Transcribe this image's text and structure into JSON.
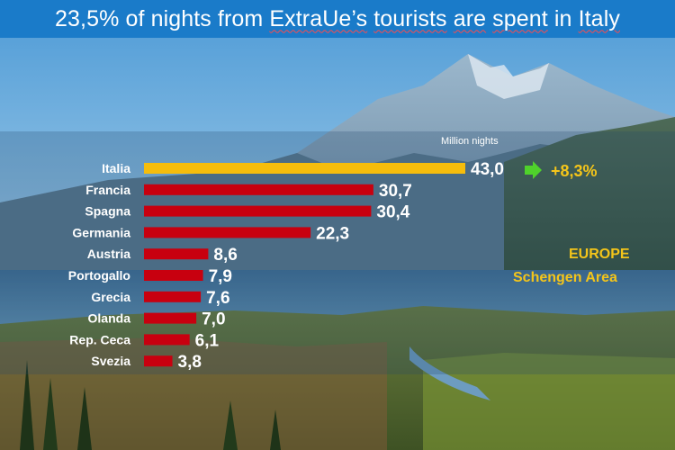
{
  "title": {
    "parts": [
      {
        "text": "23,5% of nights from ",
        "underline": false
      },
      {
        "text": "ExtraUe’s",
        "underline": true
      },
      {
        "text": " ",
        "underline": false
      },
      {
        "text": "tourists",
        "underline": true
      },
      {
        "text": " ",
        "underline": false
      },
      {
        "text": "are",
        "underline": true
      },
      {
        "text": " ",
        "underline": false
      },
      {
        "text": "spent",
        "underline": true
      },
      {
        "text": " in ",
        "underline": false
      },
      {
        "text": "Italy",
        "underline": true
      }
    ]
  },
  "colors": {
    "title_bg": "#1a7bc9",
    "highlight_bar": "#f6bd0c",
    "bar": "#c8000f",
    "accent_text": "#f4c51a",
    "arrow": "#4fd22b"
  },
  "chart_data": {
    "type": "bar",
    "orientation": "horizontal",
    "unit_label": "Million nights",
    "categories": [
      "Italia",
      "Francia",
      "Spagna",
      "Germania",
      "Austria",
      "Portogallo",
      "Grecia",
      "Olanda",
      "Rep. Ceca",
      "Svezia"
    ],
    "values": [
      43.0,
      30.7,
      30.4,
      22.3,
      8.6,
      7.9,
      7.6,
      7.0,
      6.1,
      3.8
    ],
    "value_labels": [
      "43,0",
      "30,7",
      "30,4",
      "22,3",
      "8,6",
      "7,9",
      "7,6",
      "7,0",
      "6,1",
      "3,8"
    ],
    "highlight_index": 0,
    "growth_icon": "right-arrow-icon",
    "growth_label": "+8,3%",
    "annotation_lines": [
      "EUROPE",
      "Schengen Area"
    ],
    "xlim": [
      0,
      43
    ],
    "grid": false
  }
}
